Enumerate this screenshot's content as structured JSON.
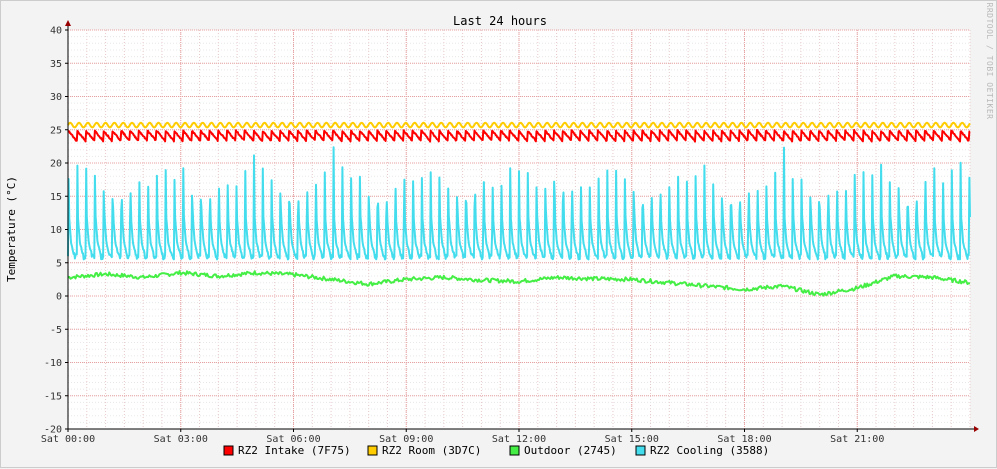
{
  "chart_data": {
    "type": "line",
    "title": "Last 24 hours",
    "ylabel": "Temperature (°C)",
    "xlabel": "",
    "watermark": "RRDTOOL / TOBI OETIKER",
    "ylim": [
      -20,
      40
    ],
    "yticks": [
      40,
      35,
      30,
      25,
      20,
      15,
      10,
      5,
      0,
      -5,
      -10,
      -15,
      -20
    ],
    "xlim": [
      0,
      24
    ],
    "xticks": [
      {
        "hour": 0,
        "label": "Sat 00:00"
      },
      {
        "hour": 3,
        "label": "Sat 03:00"
      },
      {
        "hour": 6,
        "label": "Sat 06:00"
      },
      {
        "hour": 9,
        "label": "Sat 09:00"
      },
      {
        "hour": 12,
        "label": "Sat 12:00"
      },
      {
        "hour": 15,
        "label": "Sat 15:00"
      },
      {
        "hour": 18,
        "label": "Sat 18:00"
      },
      {
        "hour": 21,
        "label": "Sat 21:00"
      }
    ],
    "grid": true,
    "legend_position": "bottom",
    "series": [
      {
        "name": "RZ2 Intake (7F75)",
        "color": "#ff0000",
        "x": [
          0,
          1,
          2,
          3,
          4,
          5,
          6,
          7,
          8,
          9,
          10,
          11,
          12,
          13,
          14,
          15,
          16,
          17,
          18,
          19,
          20,
          21,
          22,
          23,
          24
        ],
        "values": [
          24.0,
          24.0,
          24.0,
          24.0,
          24.0,
          24.0,
          24.0,
          24.0,
          24.0,
          24.0,
          24.0,
          24.0,
          24.0,
          24.0,
          24.0,
          24.0,
          24.0,
          24.0,
          24.0,
          24.0,
          24.0,
          24.0,
          24.0,
          24.0,
          24.0
        ]
      },
      {
        "name": "RZ2 Room (3D7C)",
        "color": "#ffcc00",
        "x": [
          0,
          1,
          2,
          3,
          4,
          5,
          6,
          7,
          8,
          9,
          10,
          11,
          12,
          13,
          14,
          15,
          16,
          17,
          18,
          19,
          20,
          21,
          22,
          23,
          24
        ],
        "values": [
          25.7,
          25.7,
          25.7,
          25.7,
          25.7,
          25.7,
          25.7,
          25.7,
          25.7,
          25.7,
          25.7,
          25.7,
          25.7,
          25.7,
          25.7,
          25.7,
          25.7,
          25.7,
          25.7,
          25.7,
          25.7,
          25.7,
          25.7,
          25.7,
          25.7
        ]
      },
      {
        "name": "Outdoor (2745)",
        "color": "#44ee44",
        "x": [
          0,
          1,
          2,
          3,
          4,
          5,
          6,
          7,
          8,
          9,
          10,
          11,
          12,
          13,
          14,
          15,
          16,
          17,
          18,
          19,
          20,
          21,
          22,
          23,
          24
        ],
        "values": [
          2.8,
          3.3,
          2.8,
          3.5,
          3.0,
          3.5,
          3.2,
          2.5,
          1.8,
          2.5,
          2.8,
          2.4,
          2.2,
          2.8,
          2.6,
          2.5,
          2.0,
          1.5,
          1.0,
          1.5,
          0.2,
          1.2,
          3.0,
          2.8,
          2.0
        ]
      },
      {
        "name": "RZ2 Cooling (3588)",
        "color": "#44ddee",
        "x": [
          0,
          1,
          2,
          3,
          4,
          5,
          6,
          7,
          8,
          9,
          10,
          11,
          12,
          13,
          14,
          15,
          16,
          17,
          18,
          19,
          20,
          21,
          22,
          23,
          24
        ],
        "values": [
          5.5,
          22.0,
          6.0,
          22.5,
          5.5,
          23.0,
          6.0,
          25.5,
          5.5,
          22.0,
          6.0,
          24.0,
          5.5,
          28.0,
          6.0,
          22.5,
          5.5,
          23.0,
          6.0,
          25.5,
          5.5,
          22.0,
          6.0,
          27.0,
          5.5
        ]
      }
    ]
  }
}
